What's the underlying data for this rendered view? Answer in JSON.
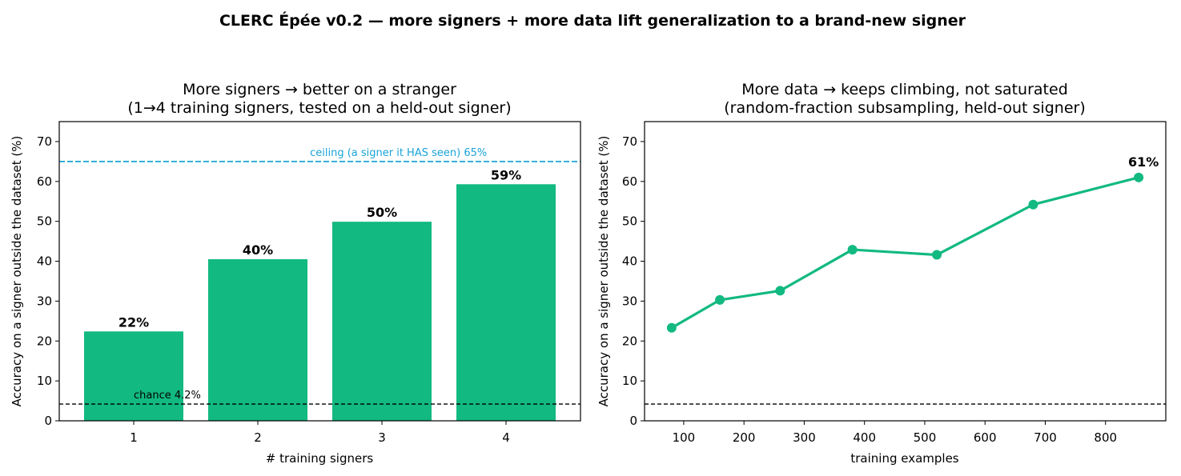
{
  "suptitle": "CLERC Épée v0.2 — more signers + more data lift generalization to a brand-new signer",
  "colors": {
    "bar": "#12b981",
    "line": "#12b981",
    "ceiling": "#1aa3d9",
    "chance": "#000000"
  },
  "chart_data": [
    {
      "type": "bar",
      "title_line1": "More signers → better on a stranger",
      "title_line2": "(1→4 training signers, tested on a held-out signer)",
      "xlabel": "# training signers",
      "ylabel": "Accuracy on a signer outside the dataset (%)",
      "categories": [
        "1",
        "2",
        "3",
        "4"
      ],
      "values": [
        22.4,
        40.5,
        49.9,
        59.3
      ],
      "value_labels": [
        "22%",
        "40%",
        "50%",
        "59%"
      ],
      "ylim": [
        0,
        75
      ],
      "yticks": [
        0,
        10,
        20,
        30,
        40,
        50,
        60,
        70
      ],
      "reference_lines": [
        {
          "kind": "ceiling",
          "value": 65,
          "label": "ceiling (a signer it HAS seen) 65%"
        },
        {
          "kind": "chance",
          "value": 4.2,
          "label": "chance 4.2%"
        }
      ],
      "grid": false
    },
    {
      "type": "line",
      "title_line1": "More data → keeps climbing, not saturated",
      "title_line2": "(random-fraction subsampling, held-out signer)",
      "xlabel": "training examples",
      "ylabel": "Accuracy on a signer outside the dataset (%)",
      "x": [
        80,
        160,
        260,
        380,
        520,
        680,
        855
      ],
      "y": [
        23.3,
        30.3,
        32.6,
        42.9,
        41.6,
        54.2,
        61.0
      ],
      "end_label": "61%",
      "xlim": [
        35,
        900
      ],
      "xticks": [
        100,
        200,
        300,
        400,
        500,
        600,
        700,
        800
      ],
      "ylim": [
        0,
        75
      ],
      "yticks": [
        0,
        10,
        20,
        30,
        40,
        50,
        60,
        70
      ],
      "reference_lines": [
        {
          "kind": "chance",
          "value": 4.2
        }
      ],
      "grid": false
    }
  ]
}
